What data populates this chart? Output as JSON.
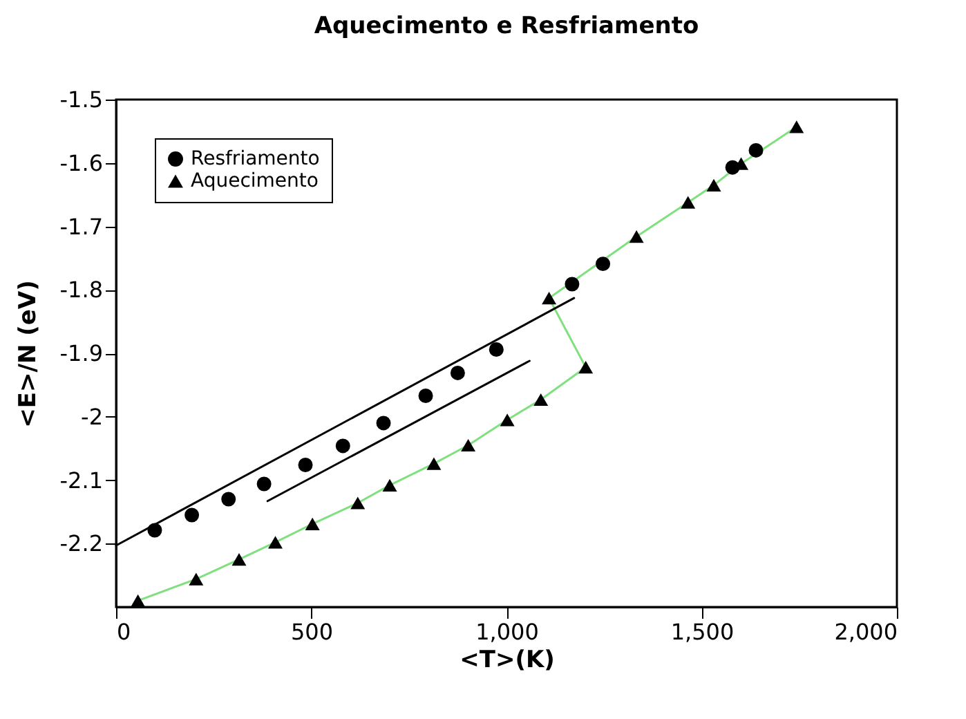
{
  "chart_data": {
    "type": "scatter",
    "title": "Aquecimento e Resfriamento",
    "xlabel": "<T>(K)",
    "ylabel": "<E>/N (eV)",
    "xlim": [
      0,
      2000
    ],
    "xticks": [
      0,
      500,
      {
        "value": 1000,
        "label": "1,000"
      },
      {
        "value": 1500,
        "label": "1,500"
      },
      {
        "value": 2000,
        "label": "2,000"
      }
    ],
    "ylim": [
      -2.3,
      -1.5
    ],
    "yticks": [
      -1.5,
      -1.6,
      -1.7,
      -1.8,
      -1.9,
      -2,
      -2.1,
      -2.2
    ],
    "grid": false,
    "legend": "top left",
    "series": [
      {
        "name": "Resfriamento",
        "marker": "circle",
        "color": "#000000",
        "x": [
          99,
          194,
          288,
          379,
          485,
          581,
          685,
          793,
          875,
          974,
          1109,
          1168,
          1247,
          1579,
          1639
        ],
        "values": [
          -2.179,
          -2.155,
          -2.13,
          -2.106,
          -2.076,
          -2.046,
          -2.01,
          -1.967,
          -1.931,
          -1.894,
          null,
          -1.791,
          -1.759,
          -1.607,
          -1.58
        ]
      },
      {
        "name": "Aquecimento",
        "type": "line",
        "marker": "triangle",
        "color": "#80e080",
        "x": [
          56,
          205,
          315,
          408,
          503,
          619,
          701,
          814,
          902,
          1002,
          1088,
          1203,
          1109,
          1333,
          1465,
          1531,
          1601,
          1743
        ],
        "values": [
          -2.29,
          -2.256,
          -2.225,
          -2.198,
          -2.169,
          -2.136,
          -2.108,
          -2.074,
          -2.045,
          -2.005,
          -1.973,
          -1.922,
          -1.813,
          -1.716,
          -1.662,
          -1.635,
          -1.601,
          -1.543
        ]
      },
      {
        "type": "line",
        "marker": "none",
        "color": "#000000",
        "x": [
          0,
          1173
        ],
        "values": [
          -2.203,
          -1.813
        ]
      },
      {
        "type": "line",
        "marker": "none",
        "color": "#000000",
        "x": [
          388,
          1059
        ],
        "values": [
          -2.133,
          -1.912
        ]
      }
    ]
  }
}
